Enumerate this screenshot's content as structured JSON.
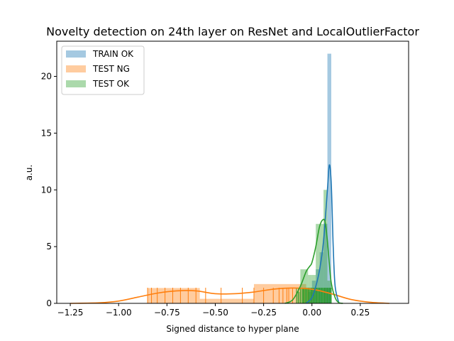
{
  "chart_data": {
    "type": "histogram",
    "title": "Novelty detection on 24th layer on ResNet and LocalOutlierFactor",
    "xlabel": "Signed distance to hyper plane",
    "ylabel": "a.u.",
    "xlim": [
      -1.32,
      0.5
    ],
    "ylim": [
      0,
      23.1
    ],
    "xticks": [
      -1.25,
      -1.0,
      -0.75,
      -0.5,
      -0.25,
      0.0,
      0.25
    ],
    "xtick_labels": [
      "−1.25",
      "−1.00",
      "−0.75",
      "−0.50",
      "−0.25",
      "0.00",
      "0.25"
    ],
    "yticks": [
      0,
      5,
      10,
      15,
      20
    ],
    "ytick_labels": [
      "0",
      "5",
      "10",
      "15",
      "20"
    ],
    "legend_position": "upper-left",
    "grid": false,
    "series": [
      {
        "name": "TRAIN OK",
        "color": "#1f77b4",
        "hist_bins": [
          [
            -0.02,
            0.0,
            1.0
          ],
          [
            0.0,
            0.02,
            2.0
          ],
          [
            0.02,
            0.04,
            3.0
          ],
          [
            0.04,
            0.06,
            4.5
          ],
          [
            0.06,
            0.08,
            7.0
          ],
          [
            0.08,
            0.1,
            22.0
          ]
        ],
        "kde": [
          [
            -0.03,
            0.0
          ],
          [
            0.0,
            0.5
          ],
          [
            0.02,
            1.5
          ],
          [
            0.04,
            3.0
          ],
          [
            0.06,
            5.5
          ],
          [
            0.08,
            10.0
          ],
          [
            0.09,
            12.2
          ],
          [
            0.1,
            10.5
          ],
          [
            0.11,
            5.0
          ],
          [
            0.12,
            1.5
          ],
          [
            0.14,
            0.0
          ]
        ],
        "rug": [
          -0.01,
          0.0,
          0.01,
          0.02,
          0.03,
          0.04,
          0.05,
          0.06,
          0.065,
          0.07,
          0.075,
          0.08,
          0.085,
          0.09,
          0.095,
          0.1
        ]
      },
      {
        "name": "TEST NG",
        "color": "#ff7f0e",
        "hist_bins": [
          [
            -0.85,
            -0.58,
            1.35
          ],
          [
            -0.58,
            -0.3,
            0.4
          ],
          [
            -0.3,
            -0.03,
            1.7
          ],
          [
            -0.03,
            0.1,
            1.3
          ]
        ],
        "kde": [
          [
            -1.25,
            0.0
          ],
          [
            -1.1,
            0.05
          ],
          [
            -1.0,
            0.2
          ],
          [
            -0.9,
            0.55
          ],
          [
            -0.8,
            0.9
          ],
          [
            -0.7,
            1.1
          ],
          [
            -0.6,
            1.1
          ],
          [
            -0.5,
            0.85
          ],
          [
            -0.4,
            0.85
          ],
          [
            -0.3,
            1.0
          ],
          [
            -0.2,
            1.25
          ],
          [
            -0.1,
            1.35
          ],
          [
            0.0,
            1.25
          ],
          [
            0.1,
            0.85
          ],
          [
            0.2,
            0.35
          ],
          [
            0.3,
            0.1
          ],
          [
            0.4,
            0.0
          ]
        ],
        "rug": [
          -0.85,
          -0.83,
          -0.8,
          -0.76,
          -0.72,
          -0.68,
          -0.64,
          -0.6,
          -0.55,
          -0.47,
          -0.36,
          -0.3,
          -0.25,
          -0.2,
          -0.17,
          -0.15,
          -0.13,
          -0.12,
          -0.1,
          -0.08,
          -0.06,
          -0.04,
          -0.02,
          0.0,
          0.03,
          0.07
        ]
      },
      {
        "name": "TEST OK",
        "color": "#2ca02c",
        "hist_bins": [
          [
            -0.08,
            -0.06,
            1.0
          ],
          [
            -0.06,
            -0.04,
            3.0
          ],
          [
            -0.04,
            -0.02,
            3.0
          ],
          [
            -0.02,
            0.0,
            2.5
          ],
          [
            0.0,
            0.02,
            2.5
          ],
          [
            0.02,
            0.04,
            7.0
          ],
          [
            0.04,
            0.06,
            7.0
          ],
          [
            0.06,
            0.08,
            10.0
          ],
          [
            0.08,
            0.1,
            2.0
          ]
        ],
        "kde": [
          [
            -0.14,
            0.0
          ],
          [
            -0.1,
            0.3
          ],
          [
            -0.06,
            1.5
          ],
          [
            -0.03,
            2.8
          ],
          [
            -0.01,
            3.3
          ],
          [
            0.0,
            3.6
          ],
          [
            0.02,
            5.0
          ],
          [
            0.04,
            6.8
          ],
          [
            0.06,
            7.4
          ],
          [
            0.07,
            7.0
          ],
          [
            0.08,
            5.5
          ],
          [
            0.09,
            3.5
          ],
          [
            0.1,
            1.8
          ],
          [
            0.12,
            0.5
          ],
          [
            0.14,
            0.05
          ],
          [
            0.16,
            0.0
          ]
        ],
        "rug": [
          -0.08,
          -0.07,
          -0.06,
          -0.05,
          -0.045,
          -0.04,
          -0.035,
          -0.03,
          -0.025,
          -0.02,
          -0.015,
          -0.01,
          -0.005,
          0.0,
          0.005,
          0.01,
          0.015,
          0.02,
          0.025,
          0.03,
          0.035,
          0.04,
          0.045,
          0.05,
          0.055,
          0.06,
          0.065,
          0.07,
          0.075,
          0.08,
          0.085,
          0.09,
          0.095,
          0.1
        ]
      }
    ]
  }
}
